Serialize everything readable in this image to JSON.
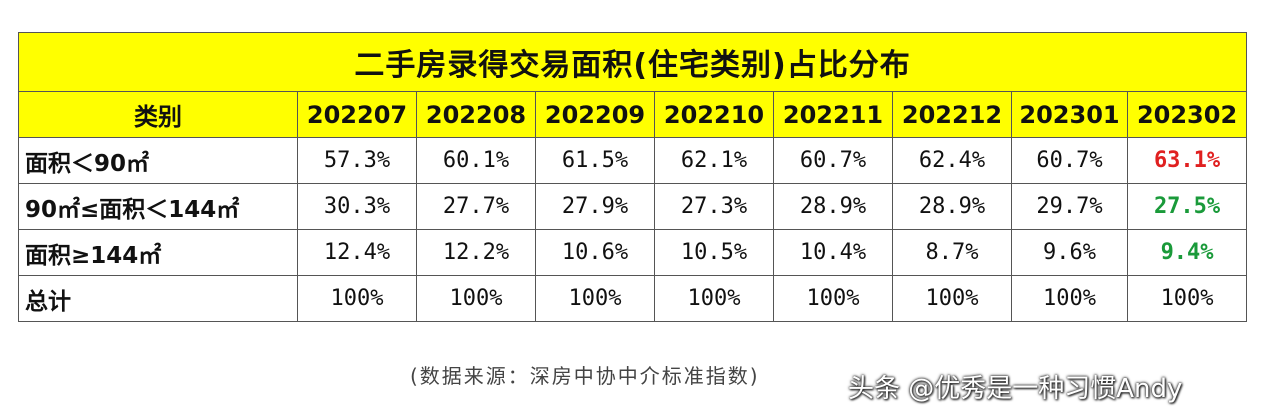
{
  "title": "二手房录得交易面积(住宅类别)占比分布",
  "header": {
    "category": "类别",
    "months": [
      "202207",
      "202208",
      "202209",
      "202210",
      "202211",
      "202212",
      "202301",
      "202302"
    ]
  },
  "rows": [
    {
      "label": "面积＜90㎡",
      "values": [
        "57.3%",
        "60.1%",
        "61.5%",
        "62.1%",
        "60.7%",
        "62.4%",
        "60.7%",
        "63.1%"
      ],
      "last_color": "#e02020"
    },
    {
      "label": "90㎡≤面积＜144㎡",
      "values": [
        "30.3%",
        "27.7%",
        "27.9%",
        "27.3%",
        "28.9%",
        "28.9%",
        "29.7%",
        "27.5%"
      ],
      "last_color": "#1a9a3a"
    },
    {
      "label": "面积≥144㎡",
      "values": [
        "12.4%",
        "12.2%",
        "10.6%",
        "10.5%",
        "10.4%",
        "8.7%",
        "9.6%",
        "9.4%"
      ],
      "last_color": "#1a9a3a"
    },
    {
      "label": "总计",
      "values": [
        "100%",
        "100%",
        "100%",
        "100%",
        "100%",
        "100%",
        "100%",
        "100%"
      ],
      "last_color": ""
    }
  ],
  "source": "(数据来源：深房中协中介标准指数)",
  "watermark": "头条 @优秀是一种习惯Andy"
}
